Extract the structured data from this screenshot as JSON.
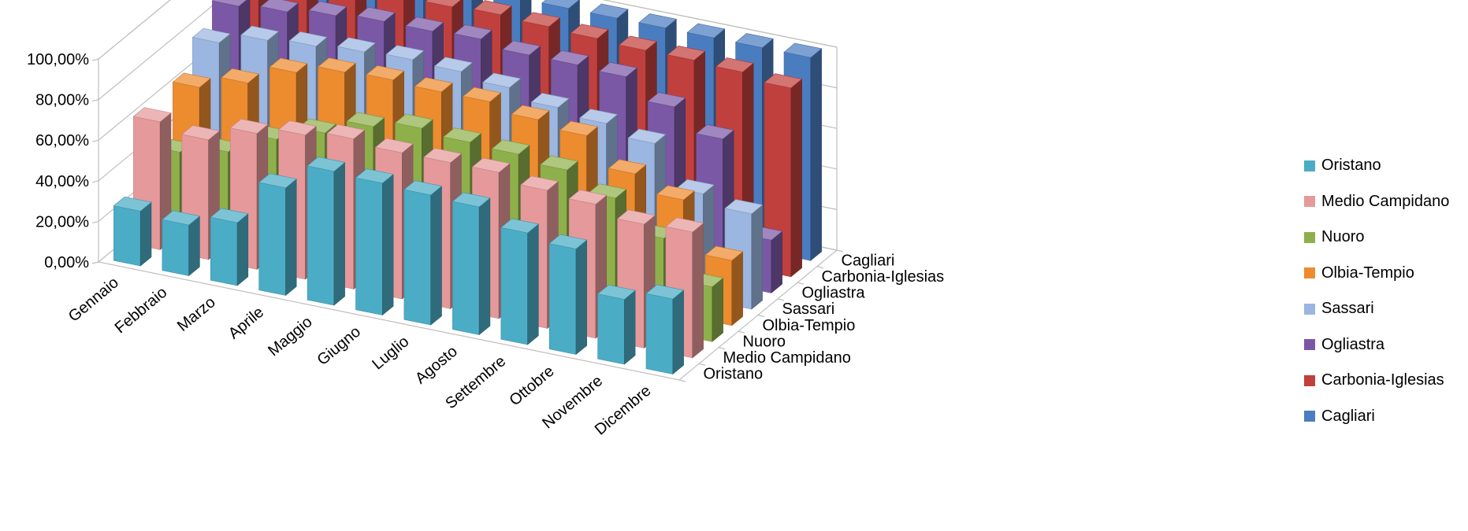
{
  "chart_data": {
    "type": "bar",
    "subtype": "3d-column",
    "title": "",
    "xlabel": "",
    "ylabel": "",
    "ylim": [
      0,
      100
    ],
    "yticks": [
      "0,00%",
      "20,00%",
      "40,00%",
      "60,00%",
      "80,00%",
      "100,00%"
    ],
    "categories": [
      "Gennaio",
      "Febbraio",
      "Marzo",
      "Aprile",
      "Maggio",
      "Giugno",
      "Luglio",
      "Agosto",
      "Settembre",
      "Ottobre",
      "Novembre",
      "Dicembre"
    ],
    "depth_labels": [
      "Oristano",
      "Medio Campidano",
      "Nuoro",
      "Olbia-Tempio",
      "Sassari",
      "Ogliastra",
      "Carbonia-Iglesias",
      "Cagliari"
    ],
    "legend_position": "right",
    "grid": true,
    "series": [
      {
        "name": "Oristano",
        "color": "#4BACC6",
        "values": [
          27,
          25,
          31,
          53,
          66,
          65,
          64,
          63,
          55,
          52,
          32,
          37
        ]
      },
      {
        "name": "Medio Campidano",
        "color": "#E6999A",
        "values": [
          63,
          59,
          67,
          71,
          74,
          72,
          72,
          72,
          68,
          66,
          61,
          62
        ]
      },
      {
        "name": "Nuoro",
        "color": "#8EB04B",
        "values": [
          40,
          45,
          56,
          64,
          72,
          76,
          74,
          73,
          70,
          61,
          46,
          27
        ]
      },
      {
        "name": "Olbia-Tempio",
        "color": "#ED8B2F",
        "values": [
          64,
          71,
          81,
          86,
          87,
          86,
          86,
          82,
          79,
          65,
          57,
          32
        ]
      },
      {
        "name": "Sassari",
        "color": "#9BB6E0",
        "values": [
          78,
          84,
          86,
          88,
          89,
          88,
          85,
          80,
          77,
          72,
          52,
          47
        ]
      },
      {
        "name": "Ogliastra",
        "color": "#7B58A6",
        "values": [
          88,
          90,
          93,
          95,
          95,
          96,
          93,
          93,
          92,
          82,
          71,
          26
        ]
      },
      {
        "name": "Carbonia-Iglesias",
        "color": "#C0403D",
        "values": [
          100,
          100,
          98,
          99,
          99,
          100,
          99,
          98,
          97,
          97,
          96,
          93
        ]
      },
      {
        "name": "Cagliari",
        "color": "#4A7DC0",
        "values": [
          100,
          100,
          100,
          100,
          100,
          100,
          100,
          100,
          100,
          100,
          100,
          100
        ]
      }
    ]
  }
}
